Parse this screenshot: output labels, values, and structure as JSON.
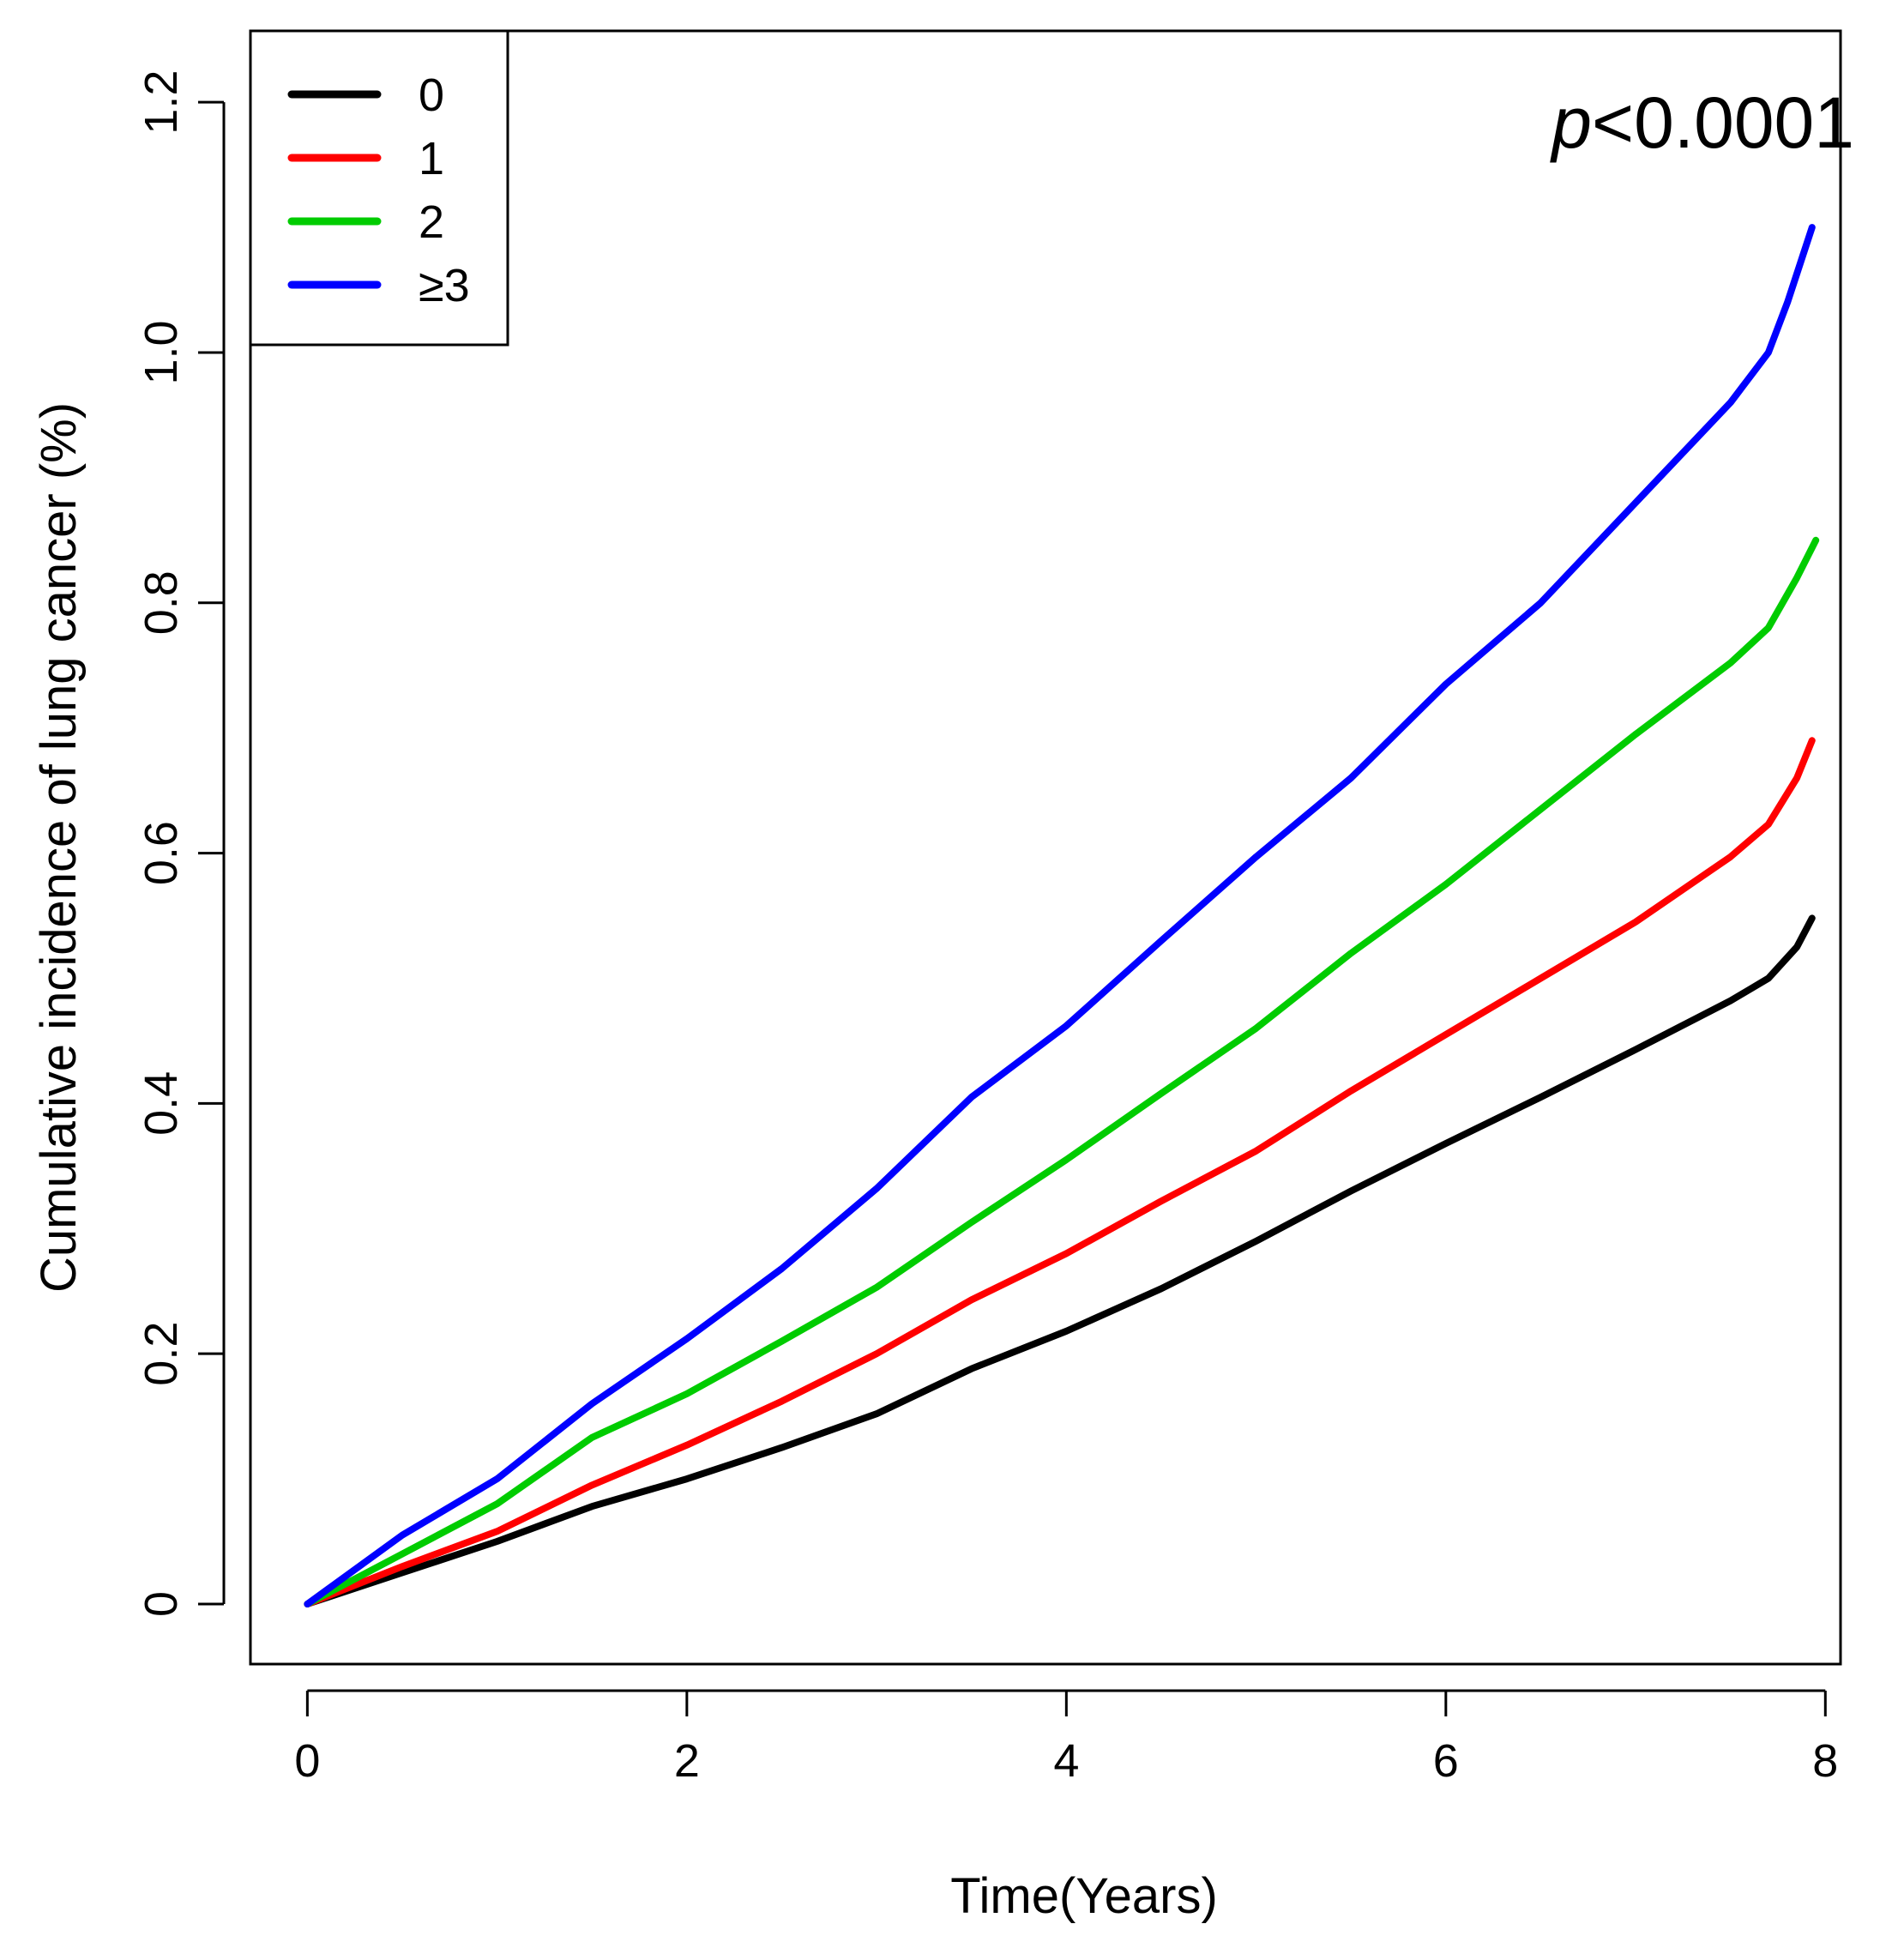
{
  "chart_data": {
    "type": "line",
    "title": "",
    "xlabel": "Time(Years)",
    "ylabel": "Cumulative incidence of lung cancer (%)",
    "xlim": [
      -0.3,
      8.08
    ],
    "ylim": [
      -0.048,
      1.257
    ],
    "xticks": [
      0,
      2,
      4,
      6,
      8
    ],
    "xtick_labels": [
      "0",
      "2",
      "4",
      "6",
      "8"
    ],
    "yticks": [
      0,
      0.2,
      0.4,
      0.6,
      0.8,
      1.0,
      1.2
    ],
    "ytick_labels": [
      "0",
      "0.2",
      "0.4",
      "0.6",
      "0.8",
      "1.0",
      "1.2"
    ],
    "grid": false,
    "legend_position": "top-left",
    "annotation": {
      "prefix": "p",
      "text": "<0.0001"
    },
    "series": [
      {
        "name": "0",
        "color": "#000000",
        "x": [
          0,
          0.5,
          1.0,
          1.5,
          2.0,
          2.5,
          3.0,
          3.5,
          4.0,
          4.5,
          5.0,
          5.5,
          6.0,
          6.5,
          7.0,
          7.5,
          7.7,
          7.85,
          7.93
        ],
        "y": [
          0,
          0.025,
          0.05,
          0.078,
          0.1,
          0.125,
          0.152,
          0.188,
          0.218,
          0.252,
          0.29,
          0.33,
          0.368,
          0.405,
          0.443,
          0.482,
          0.5,
          0.525,
          0.548
        ]
      },
      {
        "name": "1",
        "color": "#ff0000",
        "x": [
          0,
          0.5,
          1.0,
          1.5,
          2.0,
          2.5,
          3.0,
          3.5,
          4.0,
          4.5,
          5.0,
          5.5,
          6.0,
          6.5,
          7.0,
          7.5,
          7.7,
          7.85,
          7.93
        ],
        "y": [
          0,
          0.03,
          0.058,
          0.095,
          0.127,
          0.162,
          0.2,
          0.243,
          0.28,
          0.322,
          0.362,
          0.41,
          0.455,
          0.5,
          0.545,
          0.597,
          0.623,
          0.66,
          0.69
        ]
      },
      {
        "name": "2",
        "color": "#00cc00",
        "x": [
          0,
          0.5,
          1.0,
          1.5,
          2.0,
          2.5,
          3.0,
          3.5,
          4.0,
          4.5,
          5.0,
          5.5,
          6.0,
          6.5,
          7.0,
          7.5,
          7.7,
          7.85,
          7.95
        ],
        "y": [
          0,
          0.04,
          0.08,
          0.133,
          0.168,
          0.21,
          0.253,
          0.305,
          0.355,
          0.408,
          0.46,
          0.52,
          0.575,
          0.635,
          0.695,
          0.752,
          0.78,
          0.82,
          0.85
        ]
      },
      {
        "name": "≥3",
        "color": "#0000ff",
        "x": [
          0,
          0.5,
          1.0,
          1.5,
          2.0,
          2.5,
          3.0,
          3.5,
          4.0,
          4.5,
          5.0,
          5.5,
          6.0,
          6.5,
          7.0,
          7.5,
          7.7,
          7.8,
          7.93
        ],
        "y": [
          0,
          0.055,
          0.1,
          0.16,
          0.212,
          0.268,
          0.332,
          0.405,
          0.462,
          0.53,
          0.597,
          0.66,
          0.735,
          0.8,
          0.88,
          0.96,
          1.0,
          1.04,
          1.1
        ]
      }
    ]
  }
}
